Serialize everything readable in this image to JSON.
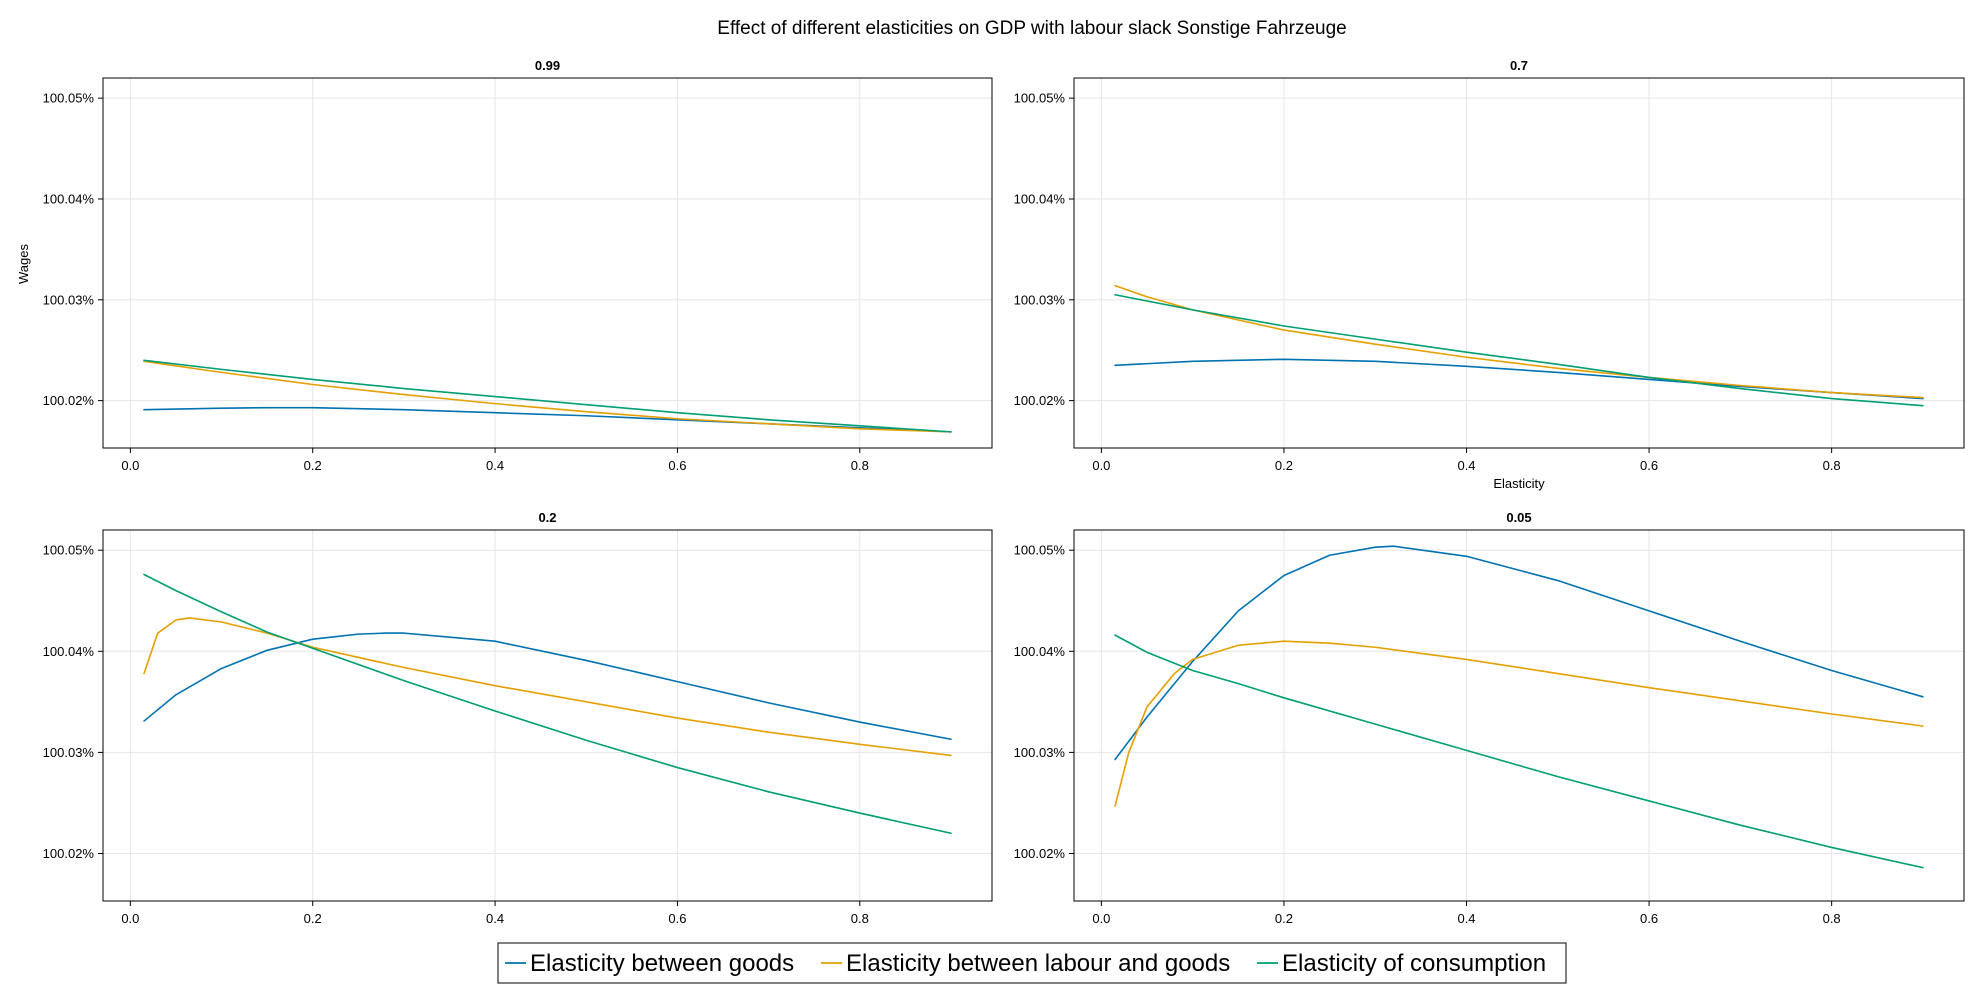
{
  "figure": {
    "title": "Effect of different elasticities on GDP with labour slack Sonstige Fahrzeuge",
    "ylabel": "Wages",
    "xlabel": "Elasticity"
  },
  "colors": {
    "series": [
      "#0072b2",
      "#e69f00",
      "#009e73"
    ],
    "grid": "#e6e6e6",
    "axis": "#000000"
  },
  "legend": {
    "placement": "bottom-center",
    "labels": [
      "Elasticity between goods",
      "Elasticity between labour and goods",
      "Elasticity of consumption"
    ]
  },
  "chart_data": [
    {
      "type": "line",
      "title": "0.99",
      "xlabel": "",
      "ylabel": "Wages",
      "xlim": [
        -0.03,
        0.945
      ],
      "ylim": [
        100.0153,
        100.052
      ],
      "xticks": [
        0.0,
        0.2,
        0.4,
        0.6,
        0.8
      ],
      "xtick_labels": [
        "0.0",
        "0.2",
        "0.4",
        "0.6",
        "0.8"
      ],
      "yticks": [
        100.02,
        100.03,
        100.04,
        100.05
      ],
      "ytick_labels": [
        "100.02%",
        "100.03%",
        "100.04%",
        "100.05%"
      ],
      "grid": true,
      "series": [
        {
          "name": "Elasticity between goods",
          "x": [
            0.015,
            0.1,
            0.15,
            0.2,
            0.3,
            0.4,
            0.5,
            0.6,
            0.7,
            0.8,
            0.9
          ],
          "y": [
            100.0191,
            100.01925,
            100.0193,
            100.0193,
            100.0191,
            100.0188,
            100.0185,
            100.0181,
            100.0177,
            100.0173,
            100.0169
          ]
        },
        {
          "name": "Elasticity between labour and goods",
          "x": [
            0.015,
            0.1,
            0.2,
            0.3,
            0.4,
            0.5,
            0.6,
            0.7,
            0.8,
            0.9
          ],
          "y": [
            100.0239,
            100.0228,
            100.0216,
            100.0206,
            100.0197,
            100.0189,
            100.0182,
            100.0177,
            100.0172,
            100.0169
          ]
        },
        {
          "name": "Elasticity of consumption",
          "x": [
            0.015,
            0.1,
            0.2,
            0.3,
            0.4,
            0.5,
            0.6,
            0.7,
            0.8,
            0.9
          ],
          "y": [
            100.024,
            100.0231,
            100.0221,
            100.0212,
            100.0204,
            100.0196,
            100.0188,
            100.0181,
            100.0175,
            100.0169
          ]
        }
      ]
    },
    {
      "type": "line",
      "title": "0.7",
      "xlabel": "Elasticity",
      "ylabel": "",
      "xlim": [
        -0.03,
        0.945
      ],
      "ylim": [
        100.0153,
        100.052
      ],
      "xticks": [
        0.0,
        0.2,
        0.4,
        0.6,
        0.8
      ],
      "xtick_labels": [
        "0.0",
        "0.2",
        "0.4",
        "0.6",
        "0.8"
      ],
      "yticks": [
        100.02,
        100.03,
        100.04,
        100.05
      ],
      "ytick_labels": [
        "100.02%",
        "100.03%",
        "100.04%",
        "100.05%"
      ],
      "grid": true,
      "series": [
        {
          "name": "Elasticity between goods",
          "x": [
            0.015,
            0.1,
            0.2,
            0.3,
            0.4,
            0.5,
            0.6,
            0.7,
            0.8,
            0.9
          ],
          "y": [
            100.0235,
            100.0239,
            100.0241,
            100.0239,
            100.0234,
            100.0228,
            100.0221,
            100.0214,
            100.0208,
            100.0202
          ]
        },
        {
          "name": "Elasticity between labour and goods",
          "x": [
            0.015,
            0.05,
            0.1,
            0.2,
            0.3,
            0.4,
            0.5,
            0.6,
            0.7,
            0.8,
            0.9
          ],
          "y": [
            100.0314,
            100.0303,
            100.029,
            100.027,
            100.0256,
            100.0243,
            100.0232,
            100.0223,
            100.0215,
            100.0208,
            100.0203
          ]
        },
        {
          "name": "Elasticity of consumption",
          "x": [
            0.015,
            0.1,
            0.2,
            0.3,
            0.4,
            0.5,
            0.6,
            0.7,
            0.8,
            0.9
          ],
          "y": [
            100.0305,
            100.029,
            100.0274,
            100.0261,
            100.0248,
            100.0236,
            100.0223,
            100.0212,
            100.0202,
            100.0195
          ]
        }
      ]
    },
    {
      "type": "line",
      "title": "0.2",
      "xlabel": "",
      "ylabel": "",
      "xlim": [
        -0.03,
        0.945
      ],
      "ylim": [
        100.0153,
        100.052
      ],
      "xticks": [
        0.0,
        0.2,
        0.4,
        0.6,
        0.8
      ],
      "xtick_labels": [
        "0.0",
        "0.2",
        "0.4",
        "0.6",
        "0.8"
      ],
      "yticks": [
        100.02,
        100.03,
        100.04,
        100.05
      ],
      "ytick_labels": [
        "100.02%",
        "100.03%",
        "100.04%",
        "100.05%"
      ],
      "grid": true,
      "series": [
        {
          "name": "Elasticity between goods",
          "x": [
            0.015,
            0.05,
            0.1,
            0.15,
            0.2,
            0.25,
            0.28,
            0.3,
            0.4,
            0.5,
            0.6,
            0.7,
            0.8,
            0.9
          ],
          "y": [
            100.0331,
            100.0357,
            100.0383,
            100.0401,
            100.0412,
            100.0417,
            100.0418,
            100.0418,
            100.041,
            100.0391,
            100.037,
            100.0349,
            100.033,
            100.0313
          ]
        },
        {
          "name": "Elasticity between labour and goods",
          "x": [
            0.015,
            0.03,
            0.05,
            0.065,
            0.1,
            0.15,
            0.2,
            0.3,
            0.4,
            0.5,
            0.6,
            0.7,
            0.8,
            0.9
          ],
          "y": [
            100.0378,
            100.0418,
            100.0431,
            100.0433,
            100.0429,
            100.0418,
            100.0404,
            100.0384,
            100.0366,
            100.035,
            100.0334,
            100.032,
            100.0308,
            100.0297
          ]
        },
        {
          "name": "Elasticity of consumption",
          "x": [
            0.015,
            0.05,
            0.1,
            0.15,
            0.2,
            0.3,
            0.4,
            0.5,
            0.6,
            0.7,
            0.8,
            0.9
          ],
          "y": [
            100.0476,
            100.046,
            100.0439,
            100.0419,
            100.0403,
            100.0371,
            100.0341,
            100.0312,
            100.0285,
            100.0261,
            100.024,
            100.022
          ]
        }
      ]
    },
    {
      "type": "line",
      "title": "0.05",
      "xlabel": "",
      "ylabel": "",
      "xlim": [
        -0.03,
        0.945
      ],
      "ylim": [
        100.0153,
        100.052
      ],
      "xticks": [
        0.0,
        0.2,
        0.4,
        0.6,
        0.8
      ],
      "xtick_labels": [
        "0.0",
        "0.2",
        "0.4",
        "0.6",
        "0.8"
      ],
      "yticks": [
        100.02,
        100.03,
        100.04,
        100.05
      ],
      "ytick_labels": [
        "100.02%",
        "100.03%",
        "100.04%",
        "100.05%"
      ],
      "grid": true,
      "series": [
        {
          "name": "Elasticity between goods",
          "x": [
            0.015,
            0.05,
            0.1,
            0.15,
            0.2,
            0.25,
            0.3,
            0.32,
            0.4,
            0.5,
            0.6,
            0.7,
            0.8,
            0.9
          ],
          "y": [
            100.0293,
            100.0335,
            100.039,
            100.044,
            100.0475,
            100.0495,
            100.0503,
            100.0504,
            100.0494,
            100.047,
            100.044,
            100.041,
            100.0381,
            100.0355
          ]
        },
        {
          "name": "Elasticity between labour and goods",
          "x": [
            0.015,
            0.03,
            0.05,
            0.08,
            0.1,
            0.15,
            0.2,
            0.25,
            0.3,
            0.4,
            0.5,
            0.6,
            0.7,
            0.8,
            0.9
          ],
          "y": [
            100.0247,
            100.03,
            100.0345,
            100.0378,
            100.0392,
            100.0406,
            100.041,
            100.0408,
            100.0404,
            100.0392,
            100.0378,
            100.0364,
            100.0351,
            100.0338,
            100.0326
          ]
        },
        {
          "name": "Elasticity of consumption",
          "x": [
            0.015,
            0.05,
            0.1,
            0.15,
            0.2,
            0.3,
            0.4,
            0.5,
            0.6,
            0.7,
            0.8,
            0.9
          ],
          "y": [
            100.0416,
            100.0399,
            100.0381,
            100.0368,
            100.0354,
            100.0328,
            100.0302,
            100.0276,
            100.0252,
            100.0228,
            100.0206,
            100.0186
          ]
        }
      ]
    }
  ]
}
